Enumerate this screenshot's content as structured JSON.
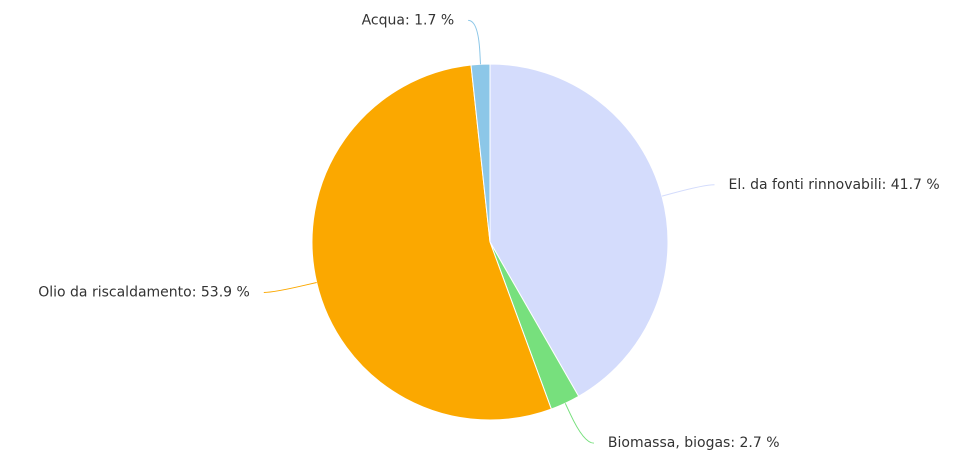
{
  "chart_data": {
    "type": "pie",
    "values": [
      41.7,
      2.7,
      53.9,
      1.7
    ],
    "value_labels": [
      "El. da fonti rinnovabili: 41.7 %",
      "Biomassa, biogas: 2.7 %",
      "Olio da riscaldamento: 53.9 %",
      "Acqua: 1.7 %"
    ],
    "colors": [
      "#d4dcfc",
      "#77e07d",
      "#fba800",
      "#8cc7e8"
    ]
  }
}
